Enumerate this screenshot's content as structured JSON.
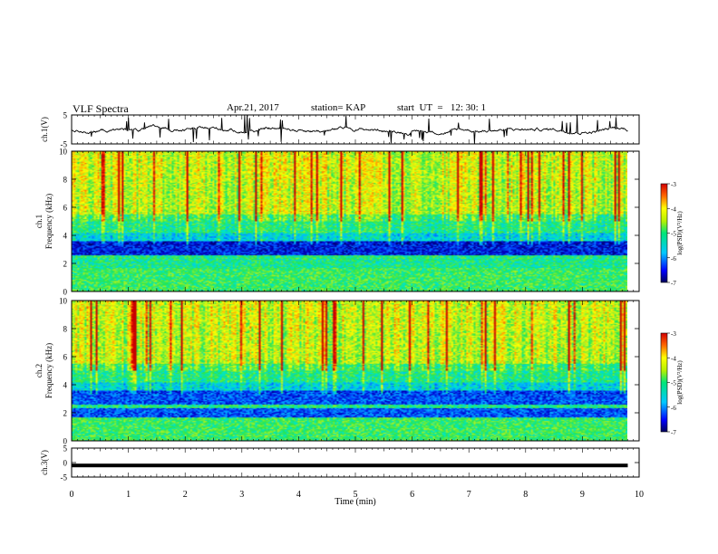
{
  "header": {
    "title": "VLF Spectra",
    "date": "Apr.21, 2017",
    "station": "station= KAP",
    "start_ut": "start  UT  =   12: 30: 1"
  },
  "chart_data": [
    {
      "panel": "ch1-waveform",
      "type": "line",
      "ylabel": "ch.1(V)",
      "ylim": [
        -5,
        5
      ],
      "yticks": [
        "5",
        "-5"
      ],
      "xlim": [
        0,
        10
      ]
    },
    {
      "panel": "ch1-spectrogram",
      "type": "heatmap",
      "ylabel": "ch.1\nFrequency (kHz)",
      "ylim": [
        0,
        10
      ],
      "yticks": [
        "10",
        "8",
        "6",
        "4",
        "2",
        "0"
      ],
      "xlim": [
        0,
        10
      ],
      "data_extent_min": 9.8,
      "colorbar": {
        "label": "log(PSD)(V²/Hz)",
        "range": [
          -7,
          -3
        ],
        "ticks": [
          "-3",
          "-4",
          "-5",
          "-6",
          "-7"
        ]
      }
    },
    {
      "panel": "ch2-spectrogram",
      "type": "heatmap",
      "ylabel": "ch.2\nFrequency (kHz)",
      "ylim": [
        0,
        10
      ],
      "yticks": [
        "10",
        "8",
        "6",
        "4",
        "2",
        "0"
      ],
      "xlim": [
        0,
        10
      ],
      "data_extent_min": 9.8,
      "colorbar": {
        "label": "log(PSD)(V²/Hz)",
        "range": [
          -7,
          -3
        ],
        "ticks": [
          "-3",
          "-4",
          "-5",
          "-6",
          "-7"
        ]
      }
    },
    {
      "panel": "ch3-waveform",
      "type": "line",
      "ylabel": "ch.3(V)",
      "ylim": [
        -5,
        5
      ],
      "yticks": [
        "5",
        "0",
        "-5"
      ],
      "xlim": [
        0,
        10
      ],
      "level": -1
    }
  ],
  "xaxis": {
    "label": "Time (min)",
    "ticks": [
      "0",
      "1",
      "2",
      "3",
      "4",
      "5",
      "6",
      "7",
      "8",
      "9",
      "10"
    ]
  },
  "colormap": [
    "#00005a",
    "#0000c8",
    "#0050ff",
    "#00b4ff",
    "#00e6c8",
    "#28e650",
    "#a0f028",
    "#ffff00",
    "#ffa000",
    "#ff3200",
    "#c80000"
  ]
}
